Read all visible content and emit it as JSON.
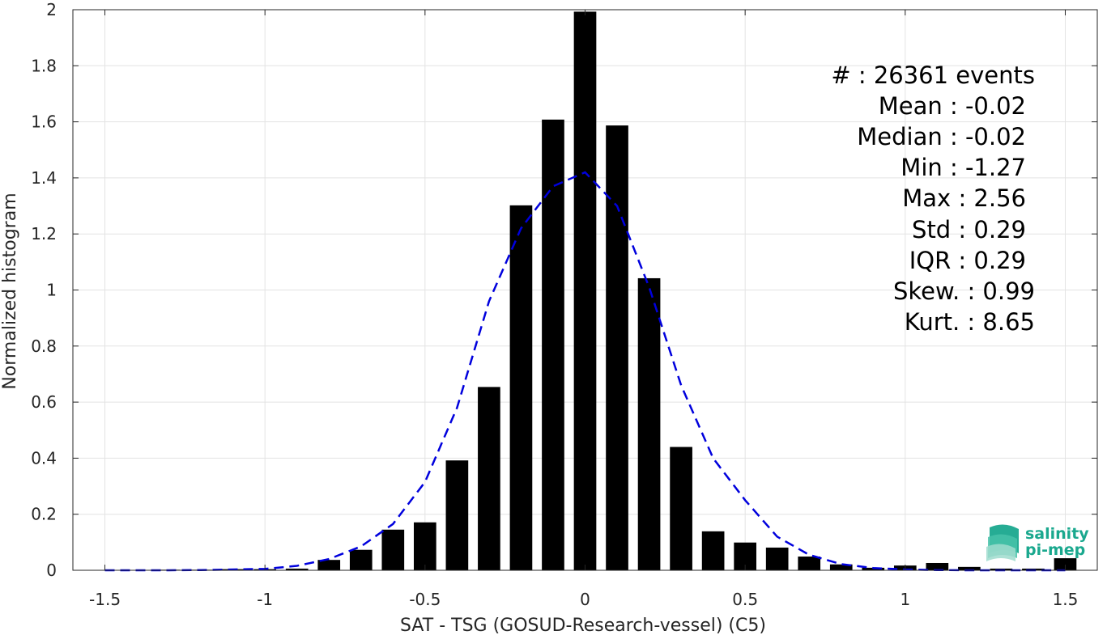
{
  "chart_data": {
    "type": "bar",
    "xlabel": "SAT - TSG (GOSUD-Research-vessel) (C5)",
    "ylabel": "Normalized histogram",
    "xlim": [
      -1.6,
      1.6
    ],
    "ylim": [
      0,
      2
    ],
    "xticks": [
      -1.5,
      -1,
      -0.5,
      0,
      0.5,
      1,
      1.5
    ],
    "xtick_labels": [
      "-1.5",
      "-1",
      "-0.5",
      "0",
      "0.5",
      "1",
      "1.5"
    ],
    "yticks": [
      0,
      0.2,
      0.4,
      0.6,
      0.8,
      1,
      1.2,
      1.4,
      1.6,
      1.8,
      2
    ],
    "ytick_labels": [
      "0",
      "0.2",
      "0.4",
      "0.6",
      "0.8",
      "1",
      "1.2",
      "1.4",
      "1.6",
      "1.8",
      "2"
    ],
    "grid": true,
    "bar_color": "#000000",
    "fit_color": "#0000dd",
    "bars": {
      "x": [
        -1.5,
        -1.4,
        -1.3,
        -1.2,
        -1.1,
        -1.0,
        -0.9,
        -0.8,
        -0.7,
        -0.6,
        -0.5,
        -0.4,
        -0.3,
        -0.2,
        -0.1,
        0.0,
        0.1,
        0.2,
        0.3,
        0.4,
        0.5,
        0.6,
        0.7,
        0.8,
        0.9,
        1.0,
        1.1,
        1.2,
        1.3,
        1.4,
        1.5
      ],
      "values": [
        0.0,
        0.0,
        0.002,
        0.002,
        0.004,
        0.004,
        0.006,
        0.037,
        0.073,
        0.145,
        0.171,
        0.392,
        0.654,
        1.302,
        1.608,
        1.993,
        1.587,
        1.042,
        0.44,
        0.139,
        0.099,
        0.081,
        0.049,
        0.021,
        0.009,
        0.017,
        0.026,
        0.012,
        0.006,
        0.006,
        0.043
      ]
    },
    "fit": {
      "name": "",
      "x": [
        -1.5,
        -1.4,
        -1.3,
        -1.2,
        -1.1,
        -1.0,
        -0.9,
        -0.8,
        -0.7,
        -0.6,
        -0.5,
        -0.4,
        -0.3,
        -0.2,
        -0.1,
        0.0,
        0.1,
        0.2,
        0.3,
        0.4,
        0.5,
        0.6,
        0.7,
        0.8,
        0.9,
        1.0,
        1.1,
        1.2,
        1.3,
        1.4,
        1.5
      ],
      "y": [
        0.0,
        0.0,
        0.0,
        0.001,
        0.003,
        0.005,
        0.016,
        0.04,
        0.085,
        0.165,
        0.315,
        0.58,
        0.96,
        1.22,
        1.37,
        1.42,
        1.3,
        1.01,
        0.66,
        0.4,
        0.25,
        0.12,
        0.055,
        0.022,
        0.008,
        0.003,
        0.001,
        0.0,
        0.0,
        0.0,
        0.0
      ]
    }
  },
  "stats": {
    "events": "#  : 26361 events",
    "mean": "Mean : -0.02",
    "median": "Median : -0.02",
    "min": "Min : -1.27",
    "max": "Max : 2.56",
    "std": "Std : 0.29",
    "iqr": "IQR : 0.29",
    "skew": "Skew. : 0.99",
    "kurt": "Kurt. : 8.65"
  },
  "logo": {
    "line1": "salinity",
    "line2": "pi-mep",
    "color": "#1aa88e"
  }
}
